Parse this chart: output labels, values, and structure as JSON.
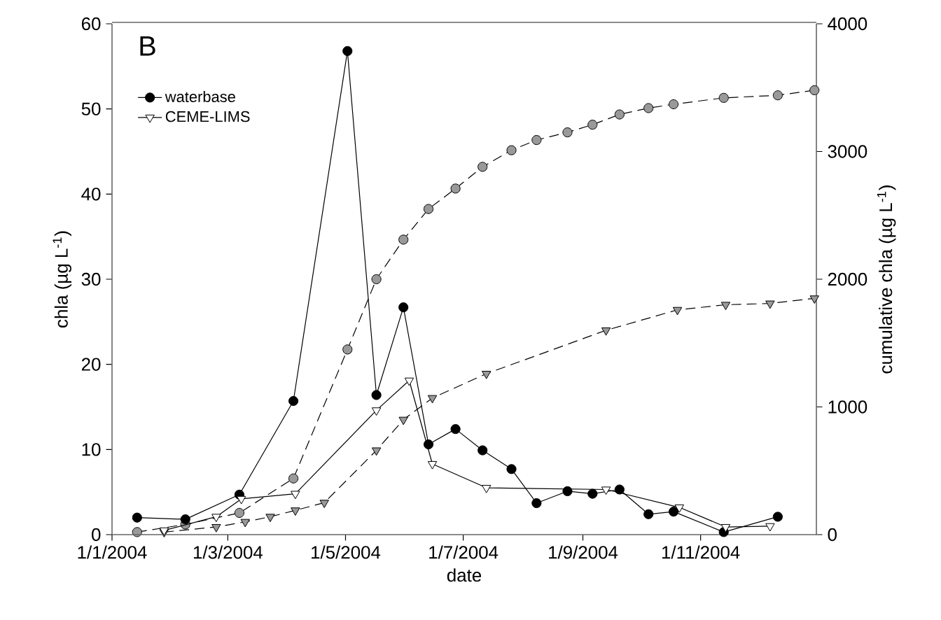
{
  "chart_data": {
    "type": "line",
    "xlabel": "date",
    "ylabel": "chla (µg L$^{-1}$)",
    "y2label": "cumulative chla (µg L$^{-1}$)",
    "annotations": [
      "B"
    ],
    "xlim": [
      "2004-01-01",
      "2004-12-31"
    ],
    "xticks": [
      {
        "value": "2004-01-01",
        "label": "1/1/2004"
      },
      {
        "value": "2004-03-01",
        "label": "1/3/2004"
      },
      {
        "value": "2004-05-01",
        "label": "1/5/2004"
      },
      {
        "value": "2004-07-01",
        "label": "1/7/2004"
      },
      {
        "value": "2004-09-01",
        "label": "1/9/2004"
      },
      {
        "value": "2004-11-01",
        "label": "1/11/2004"
      }
    ],
    "ylim": [
      0,
      60
    ],
    "yticks": [
      0,
      10,
      20,
      30,
      40,
      50,
      60
    ],
    "y2lim": [
      0,
      4000
    ],
    "y2ticks": [
      0,
      1000,
      2000,
      3000,
      4000
    ],
    "legend": "top left",
    "grid": false,
    "series": [
      {
        "name": "waterbase",
        "color": "#000000",
        "marker": "circle",
        "line_style": "solid",
        "x": [
          "2004-01-14",
          "2004-02-08",
          "2004-03-07",
          "2004-04-04",
          "2004-05-02",
          "2004-05-17",
          "2004-05-31",
          "2004-06-13",
          "2004-06-27",
          "2004-07-11",
          "2004-07-26",
          "2004-08-08",
          "2004-08-24",
          "2004-09-06",
          "2004-09-20",
          "2004-10-05",
          "2004-10-18",
          "2004-11-13",
          "2004-12-11"
        ],
        "values": [
          2.0,
          1.8,
          4.7,
          15.7,
          56.8,
          16.4,
          26.7,
          10.6,
          12.4,
          9.9,
          7.7,
          3.7,
          5.1,
          4.8,
          5.3,
          2.4,
          2.7,
          0.3,
          2.1
        ]
      },
      {
        "name": "CEME-LIMS",
        "color": "#ffffff",
        "marker": "triangle",
        "line_style": "solid",
        "x": [
          "2004-01-28",
          "2004-02-24",
          "2004-03-08",
          "2004-04-05",
          "2004-05-17",
          "2004-06-03",
          "2004-06-15",
          "2004-07-13",
          "2004-09-13",
          "2004-10-21",
          "2004-11-14",
          "2004-12-07"
        ],
        "values": [
          0.5,
          2.1,
          4.2,
          4.8,
          14.6,
          18.1,
          8.3,
          5.5,
          5.3,
          3.2,
          0.9,
          1.0
        ]
      },
      {
        "color": "#999999",
        "marker": "circle",
        "line_style": "dashed",
        "axis": "y2",
        "x": [
          "2004-01-14",
          "2004-02-08",
          "2004-03-07",
          "2004-04-04",
          "2004-05-02",
          "2004-05-17",
          "2004-05-31",
          "2004-06-13",
          "2004-06-27",
          "2004-07-11",
          "2004-07-26",
          "2004-08-08",
          "2004-08-24",
          "2004-09-06",
          "2004-09-20",
          "2004-10-05",
          "2004-10-18",
          "2004-11-13",
          "2004-12-11",
          "2004-12-30"
        ],
        "values": [
          20,
          80,
          170,
          440,
          1450,
          2000,
          2310,
          2550,
          2710,
          2880,
          3010,
          3090,
          3150,
          3210,
          3290,
          3340,
          3370,
          3420,
          3440,
          3480
        ]
      },
      {
        "color": "#999999",
        "marker": "triangle",
        "line_style": "dashed",
        "axis": "y2",
        "x": [
          "2004-01-28",
          "2004-02-24",
          "2004-03-10",
          "2004-03-23",
          "2004-04-05",
          "2004-04-20",
          "2004-05-17",
          "2004-05-31",
          "2004-06-15",
          "2004-07-13",
          "2004-09-13",
          "2004-10-20",
          "2004-11-14",
          "2004-12-07",
          "2004-12-30"
        ],
        "values": [
          20,
          60,
          100,
          140,
          190,
          250,
          660,
          900,
          1070,
          1260,
          1600,
          1760,
          1800,
          1810,
          1850
        ]
      }
    ]
  }
}
